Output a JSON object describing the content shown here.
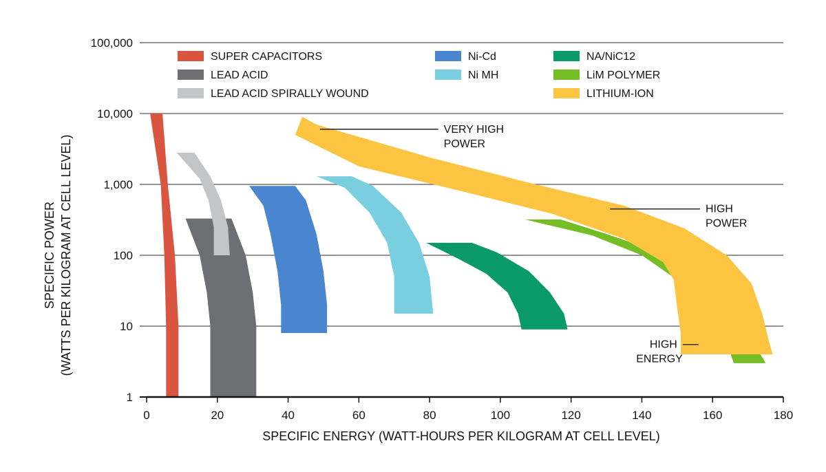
{
  "chart_data": {
    "type": "area",
    "title": "",
    "xlabel": "SPECIFIC ENERGY (WATT-HOURS PER KILOGRAM AT CELL LEVEL)",
    "ylabel_line1": "SPECIFIC POWER",
    "ylabel_line2": "(WATTS PER KILOGRAM AT CELL LEVEL)",
    "xlim": [
      0,
      180
    ],
    "ylim": [
      1,
      100000
    ],
    "yscale": "log",
    "grid": true,
    "legend_position": "top",
    "x_ticks": [
      {
        "value": 0,
        "label": "0"
      },
      {
        "value": 20,
        "label": "20"
      },
      {
        "value": 40,
        "label": "40"
      },
      {
        "value": 60,
        "label": "60"
      },
      {
        "value": 80,
        "label": "80"
      },
      {
        "value": 100,
        "label": "100"
      },
      {
        "value": 120,
        "label": "120"
      },
      {
        "value": 140,
        "label": "140"
      },
      {
        "value": 160,
        "label": "160"
      },
      {
        "value": 180,
        "label": "180"
      }
    ],
    "y_ticks": [
      {
        "value": 1,
        "label": "1"
      },
      {
        "value": 10,
        "label": "10"
      },
      {
        "value": 100,
        "label": "100"
      },
      {
        "value": 1000,
        "label": "1,000"
      },
      {
        "value": 10000,
        "label": "10,000"
      },
      {
        "value": 100000,
        "label": "100,000"
      }
    ],
    "series": [
      {
        "name": "SUPER CAPACITORS",
        "color": "#d9553f",
        "outline": [
          [
            1,
            10000
          ],
          [
            4.5,
            10000
          ],
          [
            6,
            1000
          ],
          [
            8,
            100
          ],
          [
            9,
            10
          ],
          [
            9,
            1
          ],
          [
            5.5,
            1
          ],
          [
            5.5,
            10
          ],
          [
            5,
            100
          ],
          [
            4,
            1000
          ]
        ]
      },
      {
        "name": "LEAD ACID",
        "color": "#6e6f73",
        "outline": [
          [
            11,
            330
          ],
          [
            24,
            330
          ],
          [
            28,
            100
          ],
          [
            30,
            30
          ],
          [
            31,
            10
          ],
          [
            31,
            1
          ],
          [
            18,
            1
          ],
          [
            18,
            10
          ],
          [
            17,
            30
          ],
          [
            15,
            100
          ]
        ]
      },
      {
        "name": "LEAD ACID SPIRALLY WOUND",
        "color": "#c4c5c7",
        "outline": [
          [
            8.5,
            2800
          ],
          [
            13.5,
            2800
          ],
          [
            18,
            1300
          ],
          [
            21,
            600
          ],
          [
            23,
            250
          ],
          [
            23.5,
            100
          ],
          [
            19,
            100
          ],
          [
            19,
            250
          ],
          [
            17.5,
            600
          ],
          [
            15,
            1200
          ]
        ]
      },
      {
        "name": "Ni-Cd",
        "color": "#4a86cf",
        "outline": [
          [
            29,
            950
          ],
          [
            42,
            950
          ],
          [
            45,
            600
          ],
          [
            48,
            200
          ],
          [
            50,
            60
          ],
          [
            51,
            20
          ],
          [
            51,
            8
          ],
          [
            38,
            8
          ],
          [
            38,
            20
          ],
          [
            37,
            60
          ],
          [
            35,
            200
          ],
          [
            33,
            500
          ]
        ]
      },
      {
        "name": "Ni MH",
        "color": "#79cfe0",
        "outline": [
          [
            48,
            1300
          ],
          [
            58,
            1300
          ],
          [
            64,
            950
          ],
          [
            72,
            400
          ],
          [
            77,
            150
          ],
          [
            80,
            50
          ],
          [
            81,
            15
          ],
          [
            70,
            15
          ],
          [
            70,
            50
          ],
          [
            68,
            150
          ],
          [
            63,
            400
          ],
          [
            56,
            900
          ]
        ]
      },
      {
        "name": "NA/NiC12",
        "color": "#0a9a6a",
        "outline": [
          [
            79,
            150
          ],
          [
            92,
            150
          ],
          [
            99,
            110
          ],
          [
            108,
            60
          ],
          [
            114,
            30
          ],
          [
            118,
            15
          ],
          [
            119,
            9
          ],
          [
            106,
            9
          ],
          [
            105,
            15
          ],
          [
            102,
            30
          ],
          [
            96,
            55
          ],
          [
            88,
            90
          ]
        ]
      },
      {
        "name": "LiM POLYMER",
        "color": "#74bd24",
        "outline": [
          [
            107,
            320
          ],
          [
            117,
            320
          ],
          [
            130,
            200
          ],
          [
            145,
            110
          ],
          [
            156,
            55
          ],
          [
            164,
            20
          ],
          [
            170,
            8
          ],
          [
            175,
            3
          ],
          [
            166,
            3
          ],
          [
            163,
            8
          ],
          [
            157,
            20
          ],
          [
            150,
            45
          ],
          [
            140,
            100
          ],
          [
            126,
            190
          ]
        ]
      },
      {
        "name": "LITHIUM-ION",
        "color": "#fdc441",
        "outline": [
          [
            44,
            9000
          ],
          [
            48,
            7000
          ],
          [
            80,
            2400
          ],
          [
            110,
            1000
          ],
          [
            135,
            500
          ],
          [
            152,
            240
          ],
          [
            164,
            100
          ],
          [
            171,
            40
          ],
          [
            174,
            15
          ],
          [
            176,
            6
          ],
          [
            177,
            4
          ],
          [
            151,
            4
          ],
          [
            151,
            8
          ],
          [
            150,
            18
          ],
          [
            149,
            45
          ],
          [
            146,
            80
          ],
          [
            135,
            170
          ],
          [
            115,
            380
          ],
          [
            90,
            780
          ],
          [
            60,
            1800
          ],
          [
            42,
            5000
          ]
        ]
      }
    ],
    "annotations": [
      {
        "line1": "VERY HIGH",
        "line2": "POWER",
        "point": [
          49,
          6000
        ],
        "text_at": [
          84,
          6000
        ]
      },
      {
        "line1": "HIGH",
        "line2": "POWER",
        "point": [
          131,
          450
        ],
        "text_at": [
          158,
          450
        ]
      },
      {
        "line1": "HIGH",
        "line2": "ENERGY",
        "point": [
          156,
          5.5
        ],
        "text_at": [
          150,
          5.5
        ]
      }
    ]
  }
}
